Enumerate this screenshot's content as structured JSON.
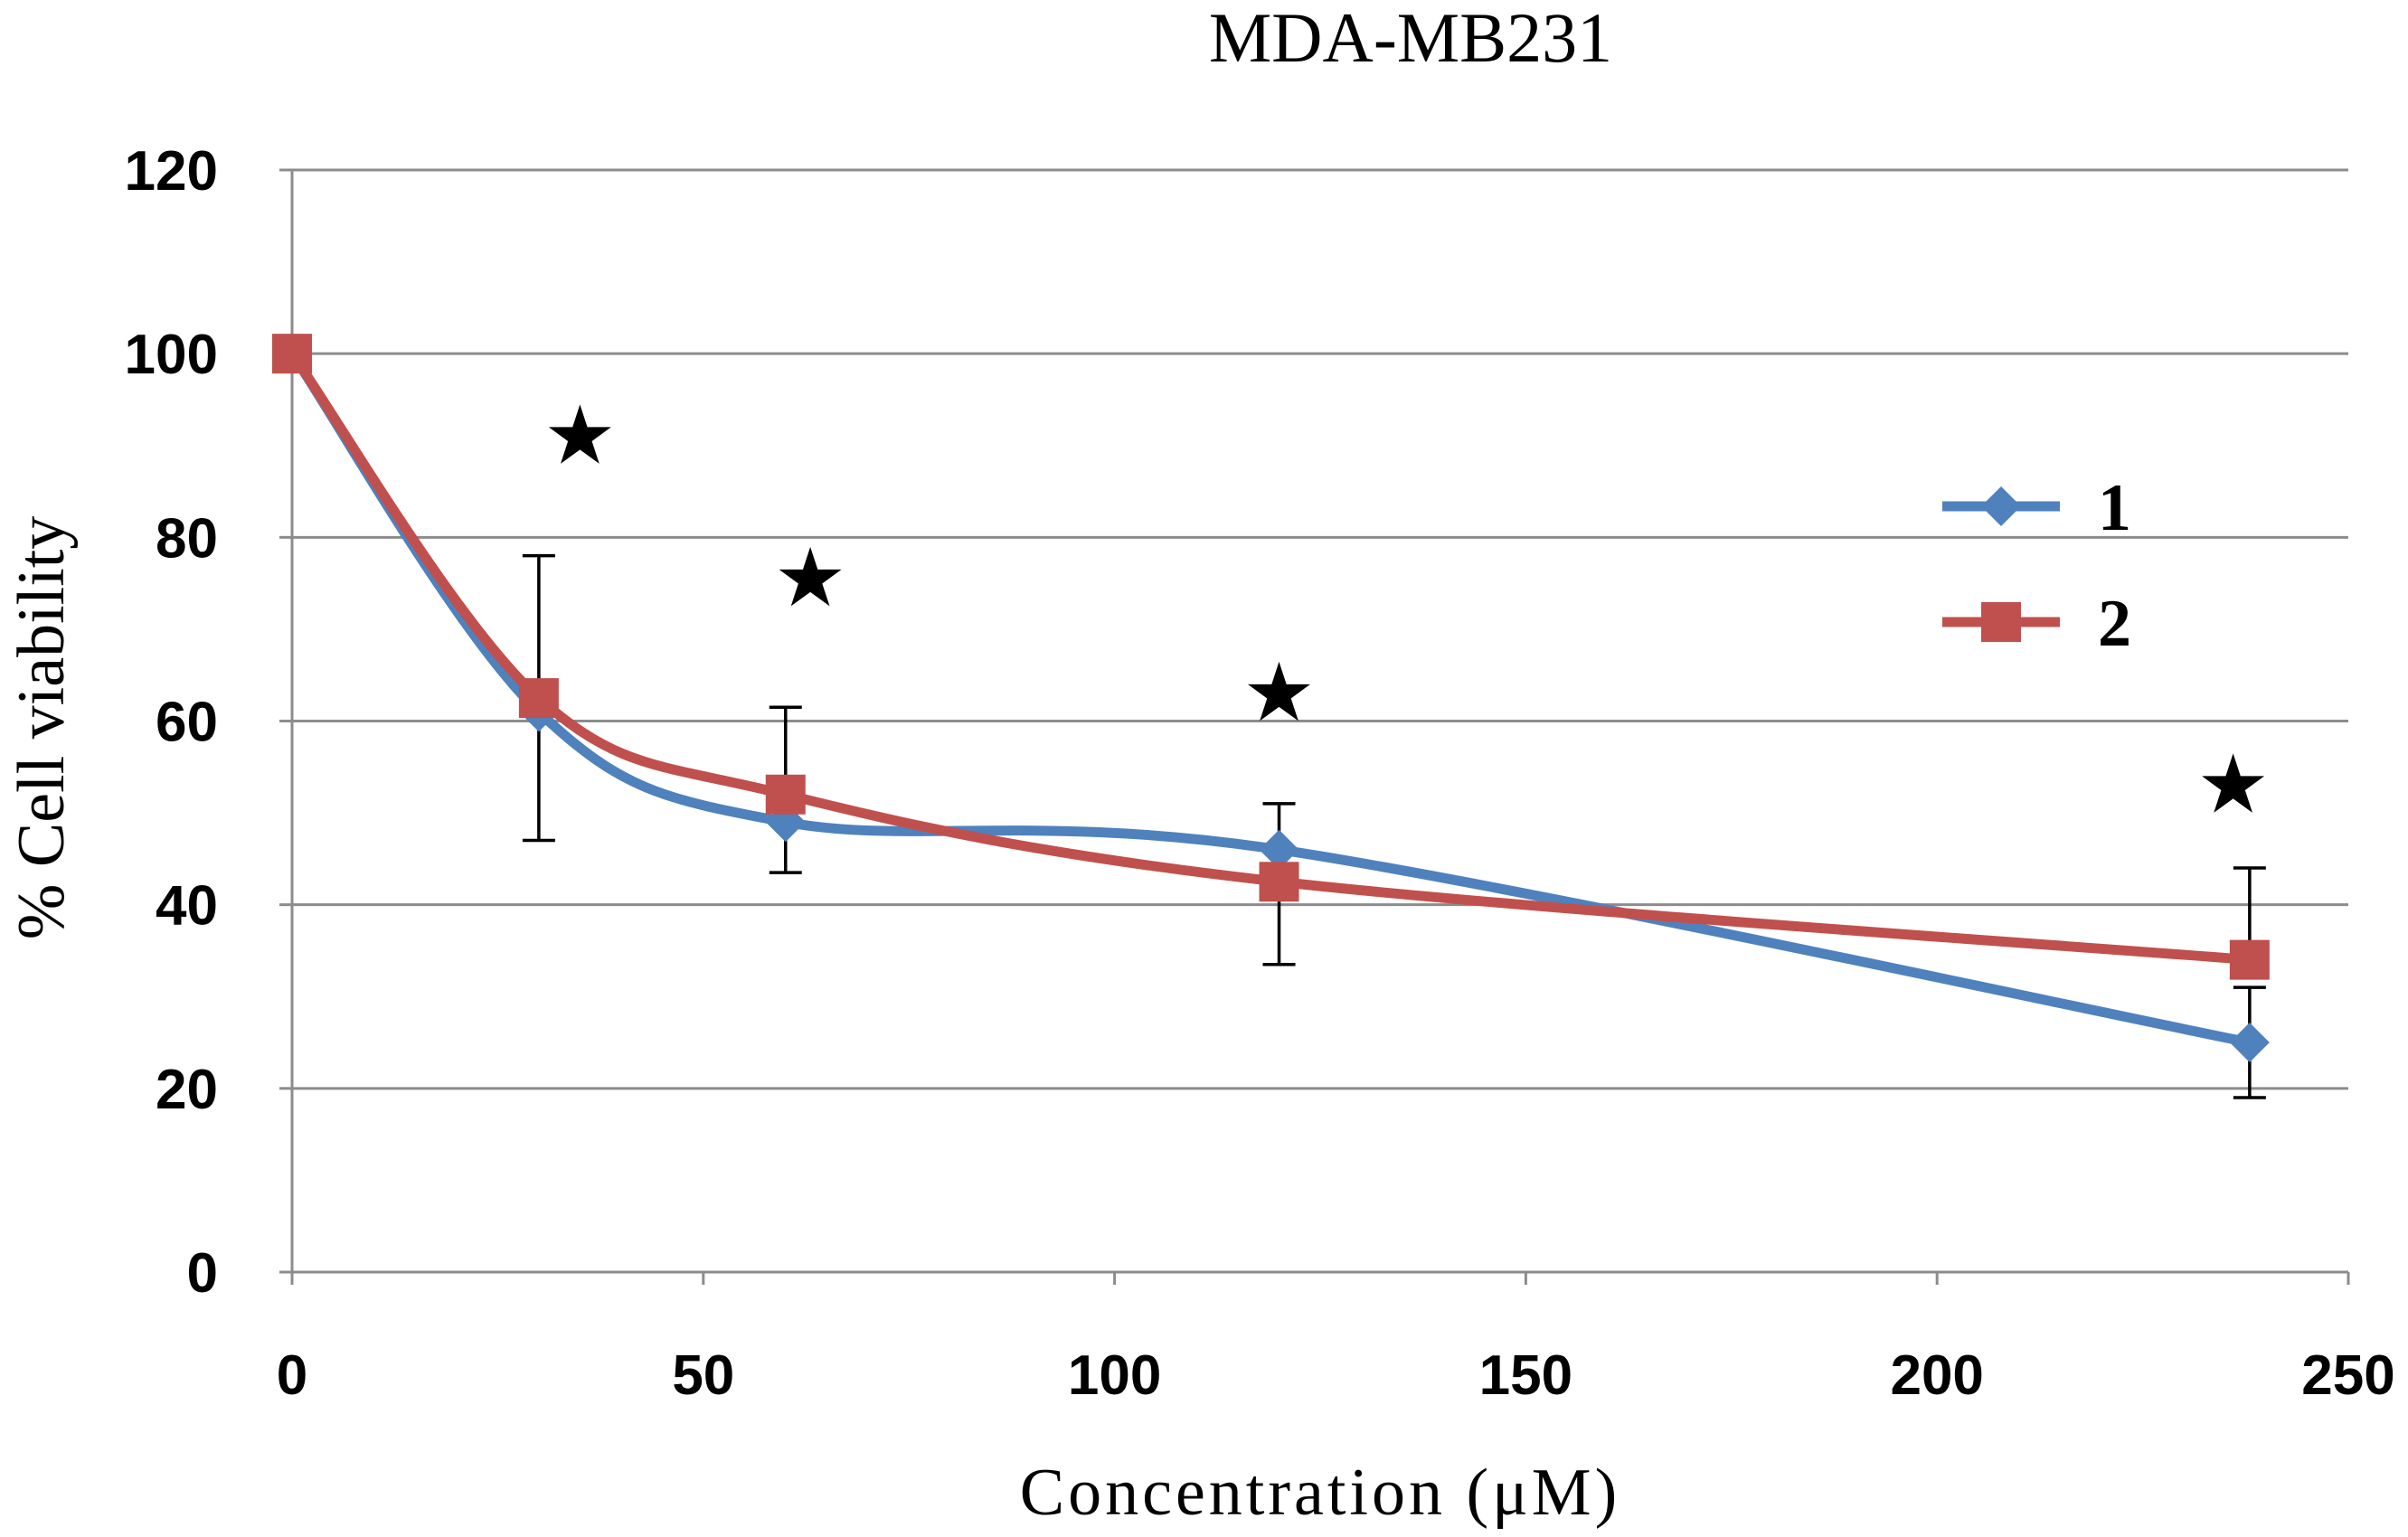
{
  "chart_data": {
    "type": "line",
    "title": "MDA-MB231",
    "xlabel": "Concentration (μM)",
    "ylabel": "% Cell viability",
    "xlim": [
      0,
      250
    ],
    "ylim": [
      0,
      120
    ],
    "x_ticks": [
      "0",
      "50",
      "100",
      "150",
      "200",
      "250"
    ],
    "y_ticks": [
      "0",
      "20",
      "40",
      "60",
      "80",
      "100",
      "120"
    ],
    "grid": true,
    "legend_position": "right",
    "series": [
      {
        "name": "1",
        "color": "#4f81bd",
        "marker": "diamond",
        "x": [
          0,
          30,
          60,
          120,
          238
        ],
        "y": [
          100,
          61,
          49,
          46,
          25
        ],
        "err_low": [
          null,
          null,
          5.5,
          0,
          6
        ],
        "err_high": [
          null,
          null,
          0,
          5,
          6
        ]
      },
      {
        "name": "2",
        "color": "#c0504d",
        "marker": "square",
        "x": [
          0,
          30,
          60,
          120,
          238
        ],
        "y": [
          100,
          62.5,
          52,
          42.5,
          34
        ],
        "err_low": [
          null,
          15.5,
          0,
          9,
          0
        ],
        "err_high": [
          null,
          15.5,
          9.5,
          0,
          10
        ]
      }
    ],
    "annotations": [
      {
        "text": "★",
        "x": 35,
        "y": 91
      },
      {
        "text": "★",
        "x": 63,
        "y": 75.5
      },
      {
        "text": "★",
        "x": 120,
        "y": 63
      },
      {
        "text": "★",
        "x": 236,
        "y": 53
      }
    ]
  }
}
